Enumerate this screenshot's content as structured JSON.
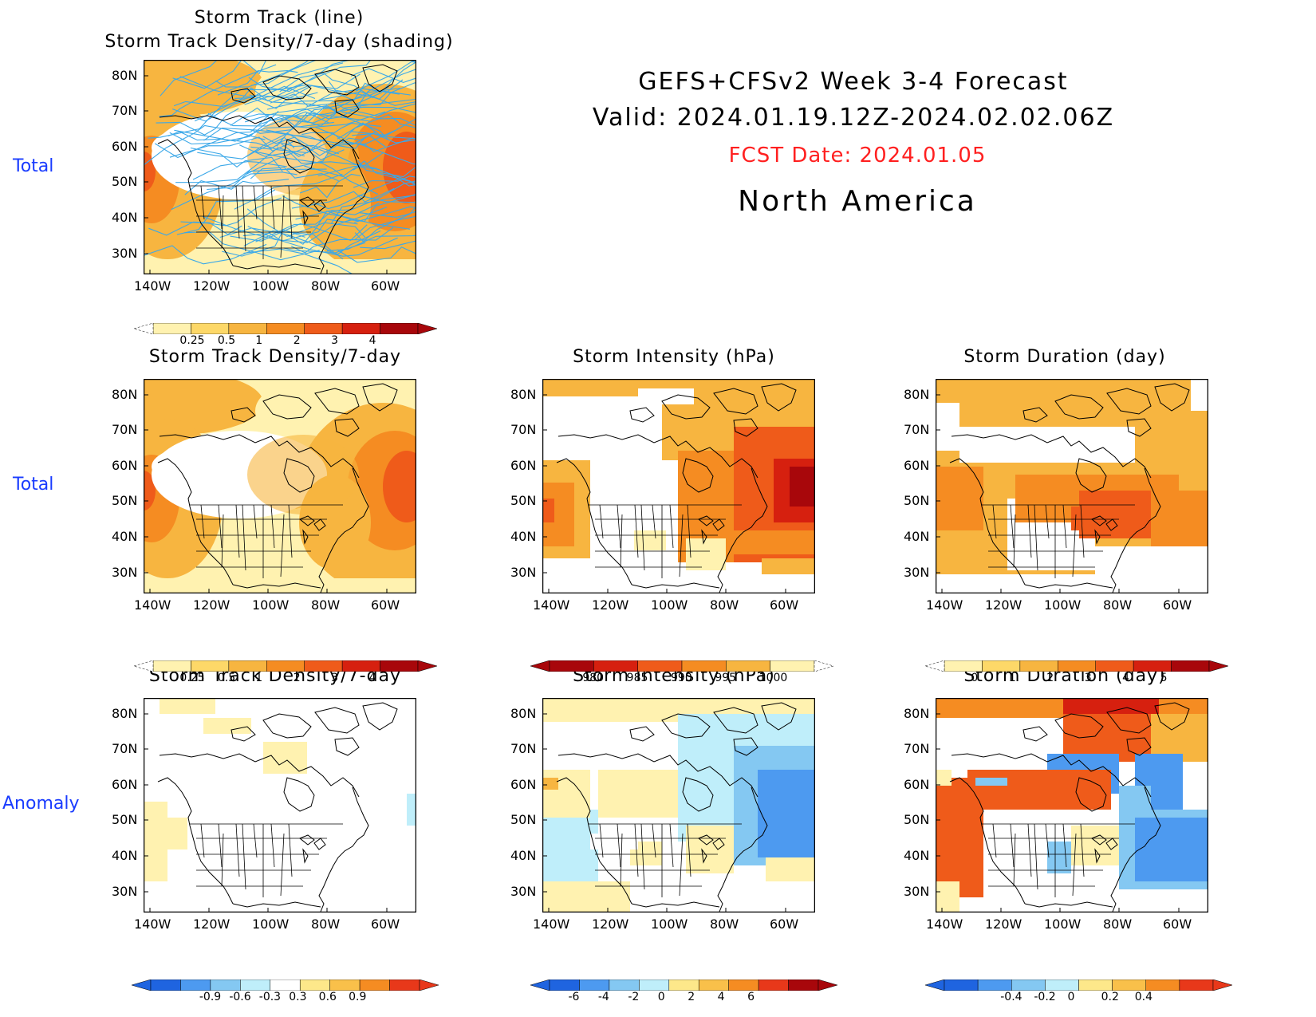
{
  "header": {
    "title": "GEFS+CFSv2 Week 3-4 Forecast",
    "valid": "Valid: 2024.01.19.12Z-2024.02.02.06Z",
    "fcst_date": "FCST Date: 2024.01.05",
    "region": "North America"
  },
  "row_labels": {
    "row1": "Total",
    "row2": "Total",
    "row3": "Anomaly"
  },
  "axes": {
    "lat_ticks": [
      "80N",
      "70N",
      "60N",
      "50N",
      "40N",
      "30N"
    ],
    "lon_ticks": [
      "140W",
      "120W",
      "100W",
      "80W",
      "60W"
    ]
  },
  "panels": {
    "p1": {
      "title_line1": "Storm Track (line)",
      "title_line2": "Storm Track Density/7-day (shading)"
    },
    "p2": {
      "title": "Storm Track Density/7-day"
    },
    "p3": {
      "title": "Storm Intensity (hPa)"
    },
    "p4": {
      "title": "Storm Duration (day)"
    },
    "p5": {
      "title": "Storm Track Density/7-day"
    },
    "p6": {
      "title": "Storm Intensity (hPa)"
    },
    "p7": {
      "title": "Storm Duration (day)"
    }
  },
  "colorbars": {
    "density": {
      "labels": [
        "0.25",
        "0.5",
        "1",
        "2",
        "3",
        "4"
      ],
      "colors": [
        "#fff2b0",
        "#fdd868",
        "#f7b540",
        "#f58c22",
        "#ef5b1a",
        "#d6200f",
        "#a8070b"
      ]
    },
    "intensity": {
      "labels": [
        "980",
        "985",
        "990",
        "995",
        "1000"
      ],
      "colors": [
        "#a8070b",
        "#d6200f",
        "#ef5b1a",
        "#f58c22",
        "#f7b540",
        "#fff2b0"
      ]
    },
    "duration": {
      "labels": [
        "0",
        "1",
        "2",
        "3",
        "4",
        "5"
      ],
      "colors": [
        "#fff2b0",
        "#fdd868",
        "#f7b540",
        "#f58c22",
        "#ef5b1a",
        "#d6200f",
        "#a8070b"
      ]
    },
    "density_anom": {
      "labels": [
        "-0.9",
        "-0.6",
        "-0.3",
        "0.3",
        "0.6",
        "0.9"
      ],
      "colors": [
        "#1f64e0",
        "#4d9af0",
        "#84c8f2",
        "#bfeefa",
        "#ffffff",
        "#fde88a",
        "#f9c04a",
        "#f58c22",
        "#e8381a"
      ]
    },
    "intensity_anom": {
      "labels": [
        "-6",
        "-4",
        "-2",
        "0",
        "2",
        "4",
        "6"
      ],
      "colors": [
        "#1f64e0",
        "#4d9af0",
        "#84c8f2",
        "#bfeefa",
        "#fde88a",
        "#f9c04a",
        "#f58c22",
        "#e8381a",
        "#a8070b"
      ]
    },
    "duration_anom": {
      "labels": [
        "-0.4",
        "-0.2",
        "0",
        "0.2",
        "0.4"
      ],
      "colors": [
        "#1f64e0",
        "#4d9af0",
        "#84c8f2",
        "#bfeefa",
        "#fde88a",
        "#f9c04a",
        "#f58c22",
        "#e8381a"
      ]
    }
  },
  "colors": {
    "track_line": "#3ba8e8",
    "map_border": "#000000",
    "row_label": "#1a3cff",
    "fcst_date": "#ff2020"
  }
}
